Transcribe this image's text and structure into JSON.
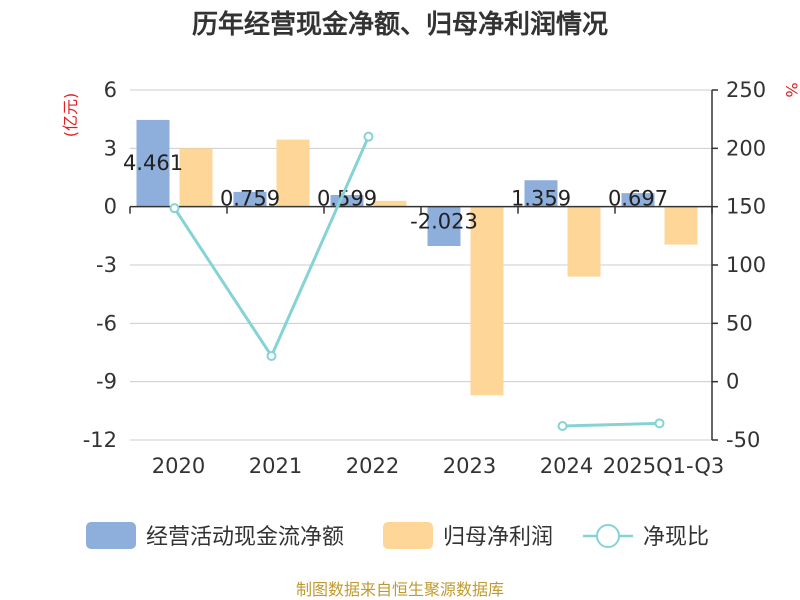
{
  "chart_data": {
    "type": "bar",
    "title": "历年经营现金净额、归母净利润情况",
    "categories": [
      "2020",
      "2021",
      "2022",
      "2023",
      "2024",
      "2025Q1-Q3"
    ],
    "left_axis": {
      "unit": "(亿元)",
      "min": -12,
      "max": 6,
      "ticks": [
        6,
        3,
        0,
        -3,
        -6,
        -9,
        -12
      ]
    },
    "right_axis": {
      "unit": "%",
      "min": -50,
      "max": 250,
      "ticks": [
        250,
        200,
        150,
        100,
        50,
        0,
        -50
      ]
    },
    "series": [
      {
        "name": "经营活动现金流净额",
        "kind": "bar",
        "axis": "left",
        "color": "#8eaedb",
        "values": [
          4.461,
          0.759,
          0.599,
          -2.023,
          1.359,
          0.697
        ],
        "labels": [
          "4.461",
          "0.759",
          "0.599",
          "-2.023",
          "1.359",
          "0.697"
        ]
      },
      {
        "name": "归母净利润",
        "kind": "bar",
        "axis": "left",
        "color": "#fdd698",
        "values": [
          3.0,
          3.45,
          0.3,
          -9.7,
          -3.6,
          -1.95
        ]
      },
      {
        "name": "净现比",
        "kind": "line",
        "axis": "right",
        "color": "#86d3d6",
        "values": [
          148.7,
          22.0,
          210.0,
          null,
          -38.0,
          -35.7
        ]
      }
    ],
    "legend_position": "bottom",
    "grid": true,
    "source": "制图数据来自恒生聚源数据库"
  }
}
